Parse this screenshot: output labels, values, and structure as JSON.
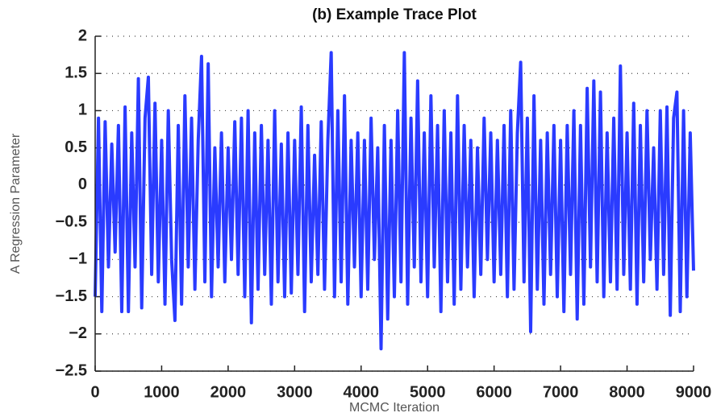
{
  "chart_data": {
    "type": "line",
    "title": "(b) Example Trace Plot",
    "x_label": "MCMC Iteration",
    "y_label": "A Regression Parameter",
    "x": [
      0,
      50,
      100,
      150,
      200,
      250,
      300,
      350,
      400,
      450,
      500,
      550,
      600,
      650,
      700,
      750,
      800,
      850,
      900,
      950,
      1000,
      1050,
      1100,
      1150,
      1200,
      1250,
      1300,
      1350,
      1400,
      1450,
      1500,
      1550,
      1600,
      1650,
      1700,
      1750,
      1800,
      1850,
      1900,
      1950,
      2000,
      2050,
      2100,
      2150,
      2200,
      2250,
      2300,
      2350,
      2400,
      2450,
      2500,
      2550,
      2600,
      2650,
      2700,
      2750,
      2800,
      2850,
      2900,
      2950,
      3000,
      3050,
      3100,
      3150,
      3200,
      3250,
      3300,
      3350,
      3400,
      3450,
      3500,
      3550,
      3600,
      3650,
      3700,
      3750,
      3800,
      3850,
      3900,
      3950,
      4000,
      4050,
      4100,
      4150,
      4200,
      4250,
      4300,
      4350,
      4400,
      4450,
      4500,
      4550,
      4600,
      4650,
      4700,
      4750,
      4800,
      4850,
      4900,
      4950,
      5000,
      5050,
      5100,
      5150,
      5200,
      5250,
      5300,
      5350,
      5400,
      5450,
      5500,
      5550,
      5600,
      5650,
      5700,
      5750,
      5800,
      5850,
      5900,
      5950,
      6000,
      6050,
      6100,
      6150,
      6200,
      6250,
      6300,
      6350,
      6400,
      6450,
      6500,
      6550,
      6600,
      6650,
      6700,
      6750,
      6800,
      6850,
      6900,
      6950,
      7000,
      7050,
      7100,
      7150,
      7200,
      7250,
      7300,
      7350,
      7400,
      7450,
      7500,
      7550,
      7600,
      7650,
      7700,
      7750,
      7800,
      7850,
      7900,
      7950,
      8000,
      8050,
      8100,
      8150,
      8200,
      8250,
      8300,
      8350,
      8400,
      8450,
      8500,
      8550,
      8600,
      8650,
      8700,
      8750,
      8800,
      8850,
      8900,
      8950,
      9000
    ],
    "series": [
      {
        "color": "#2a3bff",
        "values": [
          -1.5,
          0.9,
          -1.7,
          0.85,
          -1.1,
          0.55,
          -0.9,
          0.8,
          -1.7,
          1.05,
          -1.7,
          0.7,
          -1.1,
          1.43,
          -1.65,
          0.9,
          1.45,
          -1.2,
          1.1,
          -1.3,
          0.6,
          -1.6,
          1.0,
          -1.0,
          -1.82,
          0.8,
          -1.6,
          1.2,
          -1.1,
          0.9,
          -1.4,
          0.6,
          1.73,
          -1.3,
          1.63,
          -1.5,
          0.5,
          -1.1,
          0.7,
          -1.3,
          0.5,
          -1.0,
          0.85,
          -1.2,
          0.9,
          -1.5,
          1.0,
          -1.85,
          0.7,
          -1.4,
          0.8,
          -1.2,
          0.6,
          -1.6,
          1.0,
          -1.3,
          0.55,
          -1.5,
          0.7,
          -1.45,
          0.6,
          -1.2,
          1.05,
          -1.7,
          0.8,
          -1.3,
          0.4,
          -1.2,
          0.85,
          -1.4,
          0.6,
          1.78,
          -1.5,
          1.0,
          -1.3,
          1.2,
          -1.6,
          0.6,
          -1.1,
          0.7,
          -1.5,
          0.6,
          -1.4,
          0.9,
          -1.0,
          0.5,
          -2.2,
          0.8,
          -1.8,
          0.6,
          -1.5,
          1.0,
          -1.3,
          1.78,
          -1.6,
          0.9,
          -1.1,
          1.4,
          -1.3,
          0.7,
          -1.5,
          1.2,
          -1.1,
          0.8,
          -1.7,
          1.0,
          -1.3,
          0.7,
          -1.6,
          1.2,
          -1.4,
          0.8,
          -1.1,
          0.6,
          -1.5,
          0.5,
          -1.2,
          0.9,
          -1.0,
          0.7,
          -1.3,
          0.6,
          -1.2,
          0.8,
          -1.5,
          1.0,
          -1.4,
          0.7,
          1.65,
          -1.3,
          0.9,
          -1.97,
          1.2,
          -1.4,
          0.6,
          -1.6,
          0.7,
          -1.2,
          0.8,
          -1.5,
          0.6,
          -1.7,
          0.8,
          -1.2,
          1.0,
          -1.8,
          0.8,
          -1.6,
          1.3,
          -1.1,
          1.4,
          -1.3,
          1.25,
          -1.5,
          0.7,
          -1.3,
          0.9,
          -1.4,
          1.6,
          -1.2,
          0.7,
          -1.4,
          1.1,
          -1.6,
          0.8,
          -1.3,
          1.0,
          -1.0,
          0.5,
          -1.4,
          1.0,
          -1.2,
          1.05,
          -1.75,
          0.9,
          1.25,
          -1.7,
          1.0,
          -1.5,
          0.7,
          -1.15
        ]
      }
    ],
    "xlim": [
      0,
      9000
    ],
    "xticks": [
      0,
      1000,
      2000,
      3000,
      4000,
      5000,
      6000,
      7000,
      8000,
      9000
    ],
    "ylim": [
      -2.5,
      2
    ],
    "yticks": [
      2,
      1.5,
      1,
      0.5,
      0,
      {
        "value": -0.5,
        "label": "−0.5"
      },
      {
        "value": -1,
        "label": "−1"
      },
      {
        "value": -1.5,
        "label": "−1.5"
      },
      {
        "value": -2,
        "label": "−2"
      },
      {
        "value": -2.5,
        "label": "−2.5"
      }
    ],
    "grid": true
  }
}
